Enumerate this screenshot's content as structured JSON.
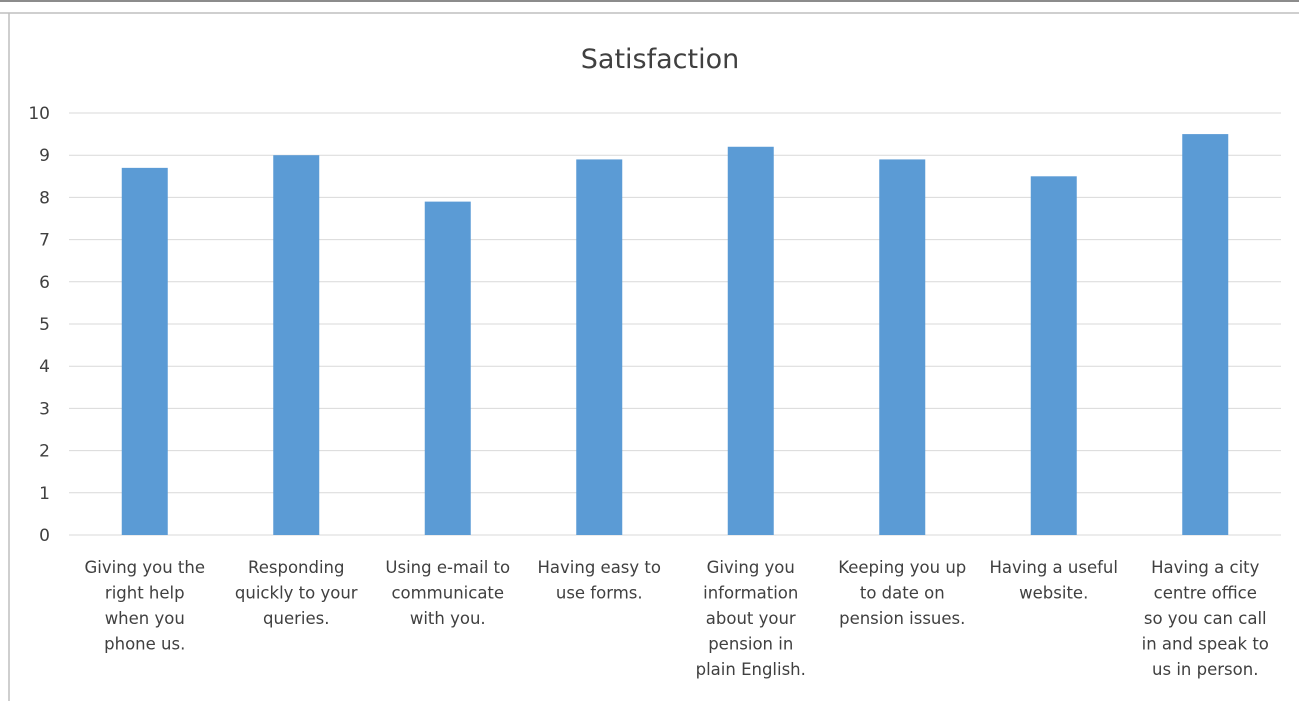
{
  "chart_data": {
    "type": "bar",
    "title": "Satisfaction",
    "xlabel": "",
    "ylabel": "",
    "ylim": [
      0,
      10
    ],
    "yticks": [
      0,
      1,
      2,
      3,
      4,
      5,
      6,
      7,
      8,
      9,
      10
    ],
    "grid": true,
    "legend": "none",
    "categories": [
      [
        "Giving you the",
        "right help",
        "when you",
        "phone us."
      ],
      [
        "Responding",
        "quickly to your",
        "queries."
      ],
      [
        "Using e-mail to",
        "communicate",
        "with you."
      ],
      [
        "Having easy to",
        "use forms."
      ],
      [
        "Giving you",
        "information",
        "about your",
        "pension in",
        "plain English."
      ],
      [
        "Keeping you up",
        "to date on",
        "pension issues."
      ],
      [
        "Having a useful",
        "website."
      ],
      [
        "Having a city",
        "centre office",
        "so you can call",
        "in and speak to",
        "us in person."
      ]
    ],
    "values": [
      8.7,
      9.0,
      7.9,
      8.9,
      9.2,
      8.9,
      8.5,
      9.5
    ],
    "colors": {
      "bar": "#5b9bd5",
      "grid": "#d9d9d9",
      "text": "#404040",
      "frame": "#bfbfbf"
    }
  }
}
